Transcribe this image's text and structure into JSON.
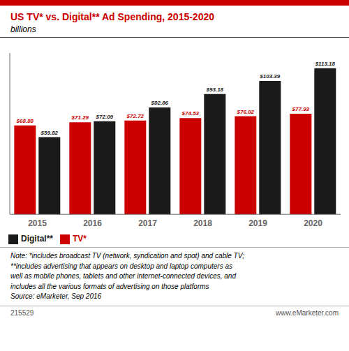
{
  "chart_data": {
    "type": "bar",
    "title": "US TV* vs. Digital** Ad Spending, 2015-2020",
    "subtitle": "billions",
    "categories": [
      "2015",
      "2016",
      "2017",
      "2018",
      "2019",
      "2020"
    ],
    "series": [
      {
        "name": "TV*",
        "color": "#cc0000",
        "values": [
          68.88,
          71.29,
          72.72,
          74.53,
          76.02,
          77.93
        ],
        "value_labels": [
          "$68.88",
          "$71.29",
          "$72.72",
          "$74.53",
          "$76.02",
          "$77.93"
        ]
      },
      {
        "name": "Digital**",
        "color": "#1a1a1a",
        "values": [
          59.82,
          72.09,
          82.86,
          93.18,
          103.39,
          113.18
        ],
        "value_labels": [
          "$59.82",
          "$72.09",
          "$82.86",
          "$93.18",
          "$103.39",
          "$113.18"
        ]
      }
    ],
    "ylim": [
      0,
      125
    ],
    "grid": false,
    "legend": "bottom",
    "data_labels": true,
    "tick_labels": "x",
    "annotations": [
      "Note: *includes broadcast TV (network, syndication and spot) and cable TV;\n**includes advertising that appears on desktop and laptop computers as\nwell as mobile phones, tablets and other internet-connected devices, and\nincludes all the various formats of advertising on those platforms\nSource: eMarketer, Sep 2016",
      "215529",
      "www.eMarketer.com"
    ]
  }
}
